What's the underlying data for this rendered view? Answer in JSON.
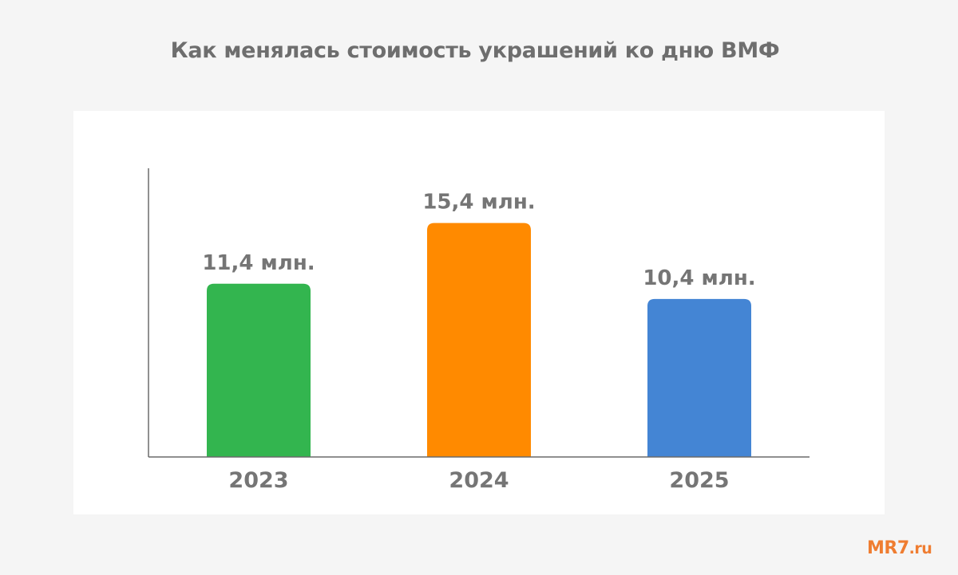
{
  "chart_data": {
    "type": "bar",
    "title": "Как менялась стоимость украшений ко дню ВМФ",
    "categories": [
      "2023",
      "2024",
      "2025"
    ],
    "values": [
      11.4,
      15.4,
      10.4
    ],
    "value_labels": [
      "11,4 млн.",
      "15,4 млн.",
      "10,4 млн."
    ],
    "colors": [
      "#33b54f",
      "#ff8a00",
      "#4485d4"
    ],
    "xlabel": "",
    "ylabel": "",
    "ylim": [
      0,
      19
    ],
    "grid": false,
    "legend": "none"
  },
  "logo": {
    "main": "MR7",
    "tld": ".ru"
  }
}
